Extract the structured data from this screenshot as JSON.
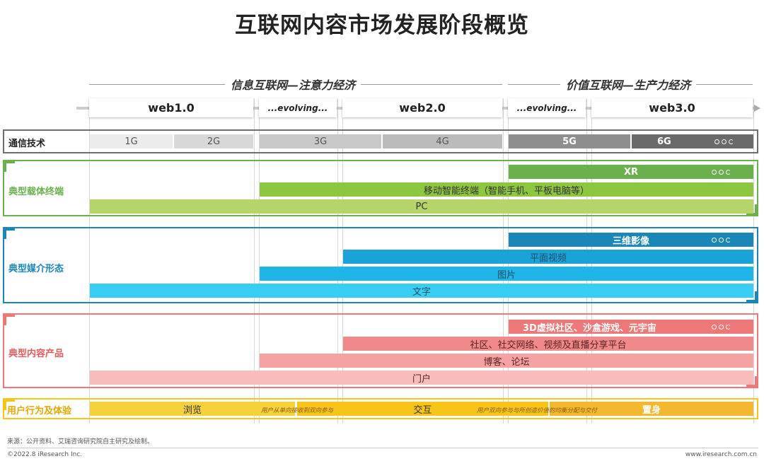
{
  "title": "互联网内容市场发展阶段概览",
  "eras": {
    "left": "信息互联网—注意力经济",
    "right": "价值互联网—生产力经济"
  },
  "stages": {
    "web1": "web1.0",
    "evolving1": "...evolving...",
    "web2": "web2.0",
    "evolving2": "...evolving...",
    "web3": "web3.0"
  },
  "rows": {
    "comm": {
      "label": "通信技术",
      "g1": "1G",
      "g2": "2G",
      "g3": "3G",
      "g4": "4G",
      "g5": "5G",
      "g6": "6G"
    },
    "terminal": {
      "label": "典型载体终端",
      "xr": "XR",
      "mobile": "移动智能终端（智能手机、平板电脑等）",
      "pc": "PC"
    },
    "media": {
      "label": "典型媒介形态",
      "threeD": "三维影像",
      "video": "平面视频",
      "image": "图片",
      "text": "文字"
    },
    "product": {
      "label": "典型内容产品",
      "virtual": "3D虚拟社区、沙盒游戏、元宇宙",
      "social": "社区、社交网络、视频及直播分享平台",
      "blog": "博客、论坛",
      "portal": "门户"
    },
    "behavior": {
      "label": "用户行为及体验",
      "browse": "浏览",
      "note1": "用户从单向接收到双向参与",
      "interact": "交互",
      "note2": "用户双向参与与所创造价值的均衡分配与交付",
      "immerse": "置身"
    }
  },
  "colors": {
    "comm": "#666666",
    "terminal": "#6ab04c",
    "media": "#1b87b8",
    "product": "#ee7777",
    "behavior": "#f5c518"
  },
  "footer": {
    "source": "来源：公开资料、艾瑞咨询研究院自主研究及绘制。",
    "copyright": "©2022.8 iResearch Inc.",
    "website": "www.iresearch.com.cn"
  }
}
